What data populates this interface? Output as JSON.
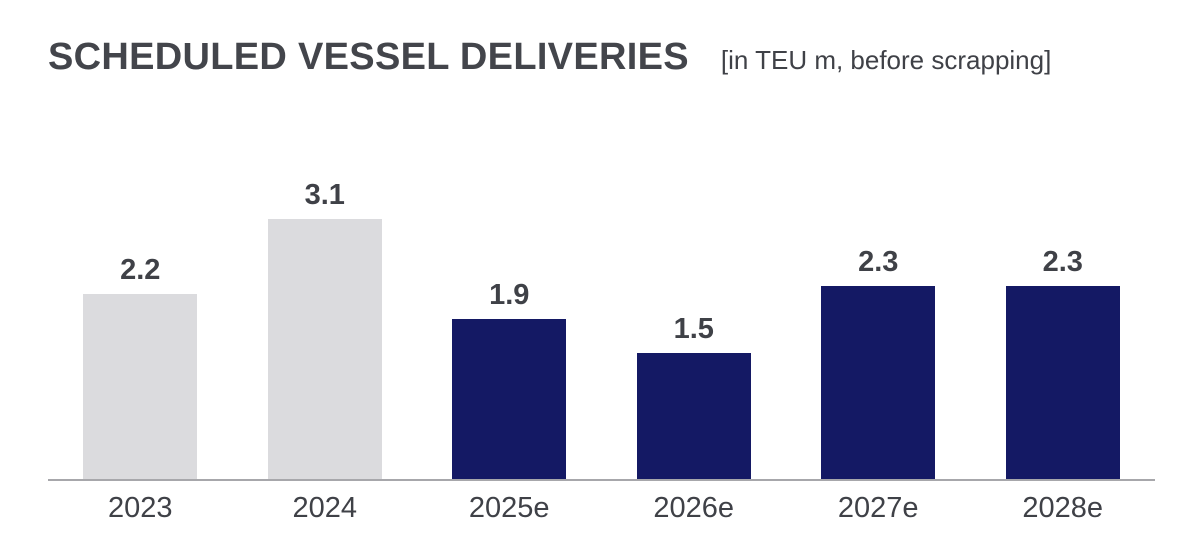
{
  "header": {
    "title": "SCHEDULED VESSEL DELIVERIES",
    "subtitle": "[in TEU m, before scrapping]"
  },
  "chart_data": {
    "type": "bar",
    "title": "SCHEDULED VESSEL DELIVERIES",
    "subtitle": "[in TEU m, before scrapping]",
    "unit": "TEU m",
    "categories": [
      "2023",
      "2024",
      "2025e",
      "2026e",
      "2027e",
      "2028e"
    ],
    "values": [
      2.2,
      3.1,
      1.9,
      1.5,
      2.3,
      2.3
    ],
    "value_labels": [
      "2.2",
      "3.1",
      "1.9",
      "1.5",
      "2.3",
      "2.3"
    ],
    "bar_colors": [
      "#DBDBDE",
      "#DBDBDE",
      "#141964",
      "#141964",
      "#141964",
      "#141964"
    ],
    "series_styles": [
      {
        "name": "actual",
        "color": "#DBDBDE",
        "categories": [
          "2023",
          "2024"
        ]
      },
      {
        "name": "estimate",
        "color": "#141964",
        "categories": [
          "2025e",
          "2026e",
          "2027e",
          "2028e"
        ]
      }
    ],
    "ylim": [
      0,
      3.3
    ],
    "xlabel": "",
    "ylabel": "",
    "grid": false,
    "legend": false,
    "axis_line_color": "#A7A7AB",
    "label_color": "#3F4147"
  }
}
